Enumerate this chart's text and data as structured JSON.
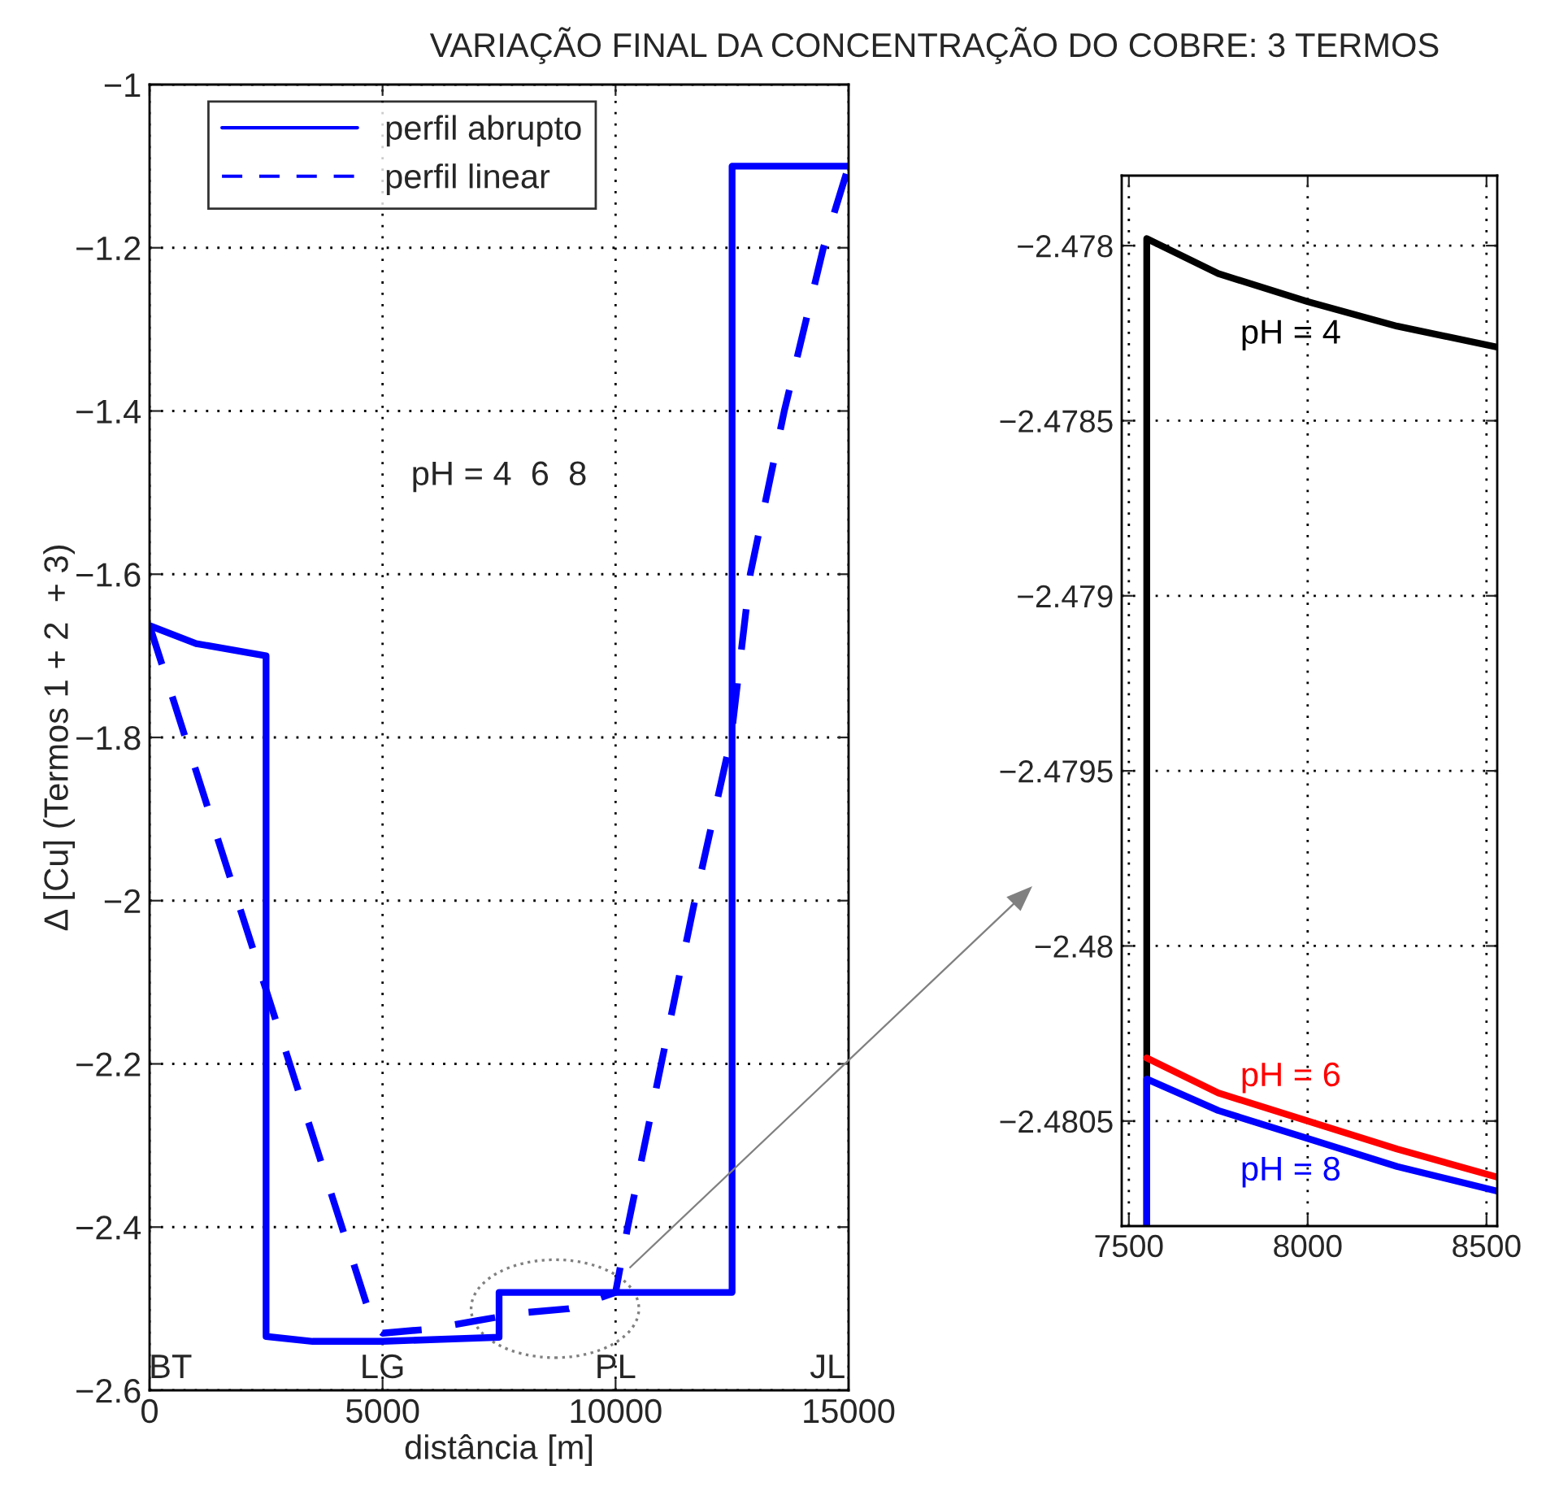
{
  "chart_data": [
    {
      "type": "line",
      "title": "VARIAÇÃO FINAL DA CONCENTRAÇÃO DO COBRE: 3 TERMOS",
      "xlabel": "distância [m]",
      "ylabel": "Δ [Cu] (Termos 1 + 2  + 3)",
      "xlim": [
        0,
        15000
      ],
      "ylim": [
        -2.6,
        -1
      ],
      "xticks": [
        0,
        5000,
        10000,
        15000
      ],
      "yticks": [
        -2.6,
        -2.4,
        -2.2,
        -2,
        -1.8,
        -1.6,
        -1.4,
        -1.2,
        -1
      ],
      "grid": true,
      "legend": "top left",
      "series": [
        {
          "name": "perfil abrupto",
          "color": "#0000ff",
          "line_style": "solid",
          "x": [
            0,
            1000,
            2500,
            2500,
            3500,
            5000,
            7500,
            7500,
            12500,
            12500,
            15000
          ],
          "values": [
            -1.663,
            -1.685,
            -1.7,
            -2.534,
            -2.54,
            -2.54,
            -2.535,
            -2.48,
            -2.48,
            -1.1,
            -1.1
          ]
        },
        {
          "name": "perfil linear",
          "color": "#0000ff",
          "line_style": "dashed",
          "x": [
            0,
            4800,
            5000,
            6000,
            7000,
            8000,
            9000,
            10000,
            10260,
            10980,
            11700,
            12480,
            12890,
            13620,
            14460,
            15000
          ],
          "values": [
            -1.663,
            -2.52,
            -2.53,
            -2.525,
            -2.515,
            -2.505,
            -2.5,
            -2.48,
            -2.4,
            -2.2,
            -2,
            -1.8,
            -1.6,
            -1.4,
            -1.2,
            -1.1
          ]
        }
      ],
      "annotations": [
        "pH = 4  6  8",
        "BT",
        "LG",
        "PL",
        "JL"
      ]
    },
    {
      "type": "line",
      "xlim": [
        7480,
        8530
      ],
      "ylim": [
        -2.4808,
        -2.4778
      ],
      "xticks": [
        7500,
        8000,
        8500
      ],
      "yticks": [
        -2.4805,
        -2.48,
        -2.4795,
        -2.479,
        -2.4785,
        -2.478
      ],
      "grid": true,
      "series": [
        {
          "name": "pH = 4",
          "color": "#000000",
          "x": [
            7550,
            7550,
            7750,
            8000,
            8250,
            8530
          ],
          "values": [
            -2.4808,
            -2.47798,
            -2.47808,
            -2.47816,
            -2.47823,
            -2.47829
          ]
        },
        {
          "name": "pH = 6",
          "color": "#ff0000",
          "x": [
            7550,
            7750,
            8000,
            8250,
            8530
          ],
          "values": [
            -2.48032,
            -2.48042,
            -2.4805,
            -2.48058,
            -2.48066
          ]
        },
        {
          "name": "pH = 8",
          "color": "#0000ff",
          "x": [
            7550,
            7550,
            7750,
            8000,
            8250,
            8530
          ],
          "values": [
            -2.4808,
            -2.48038,
            -2.48047,
            -2.48055,
            -2.48063,
            -2.4807
          ]
        }
      ]
    }
  ]
}
